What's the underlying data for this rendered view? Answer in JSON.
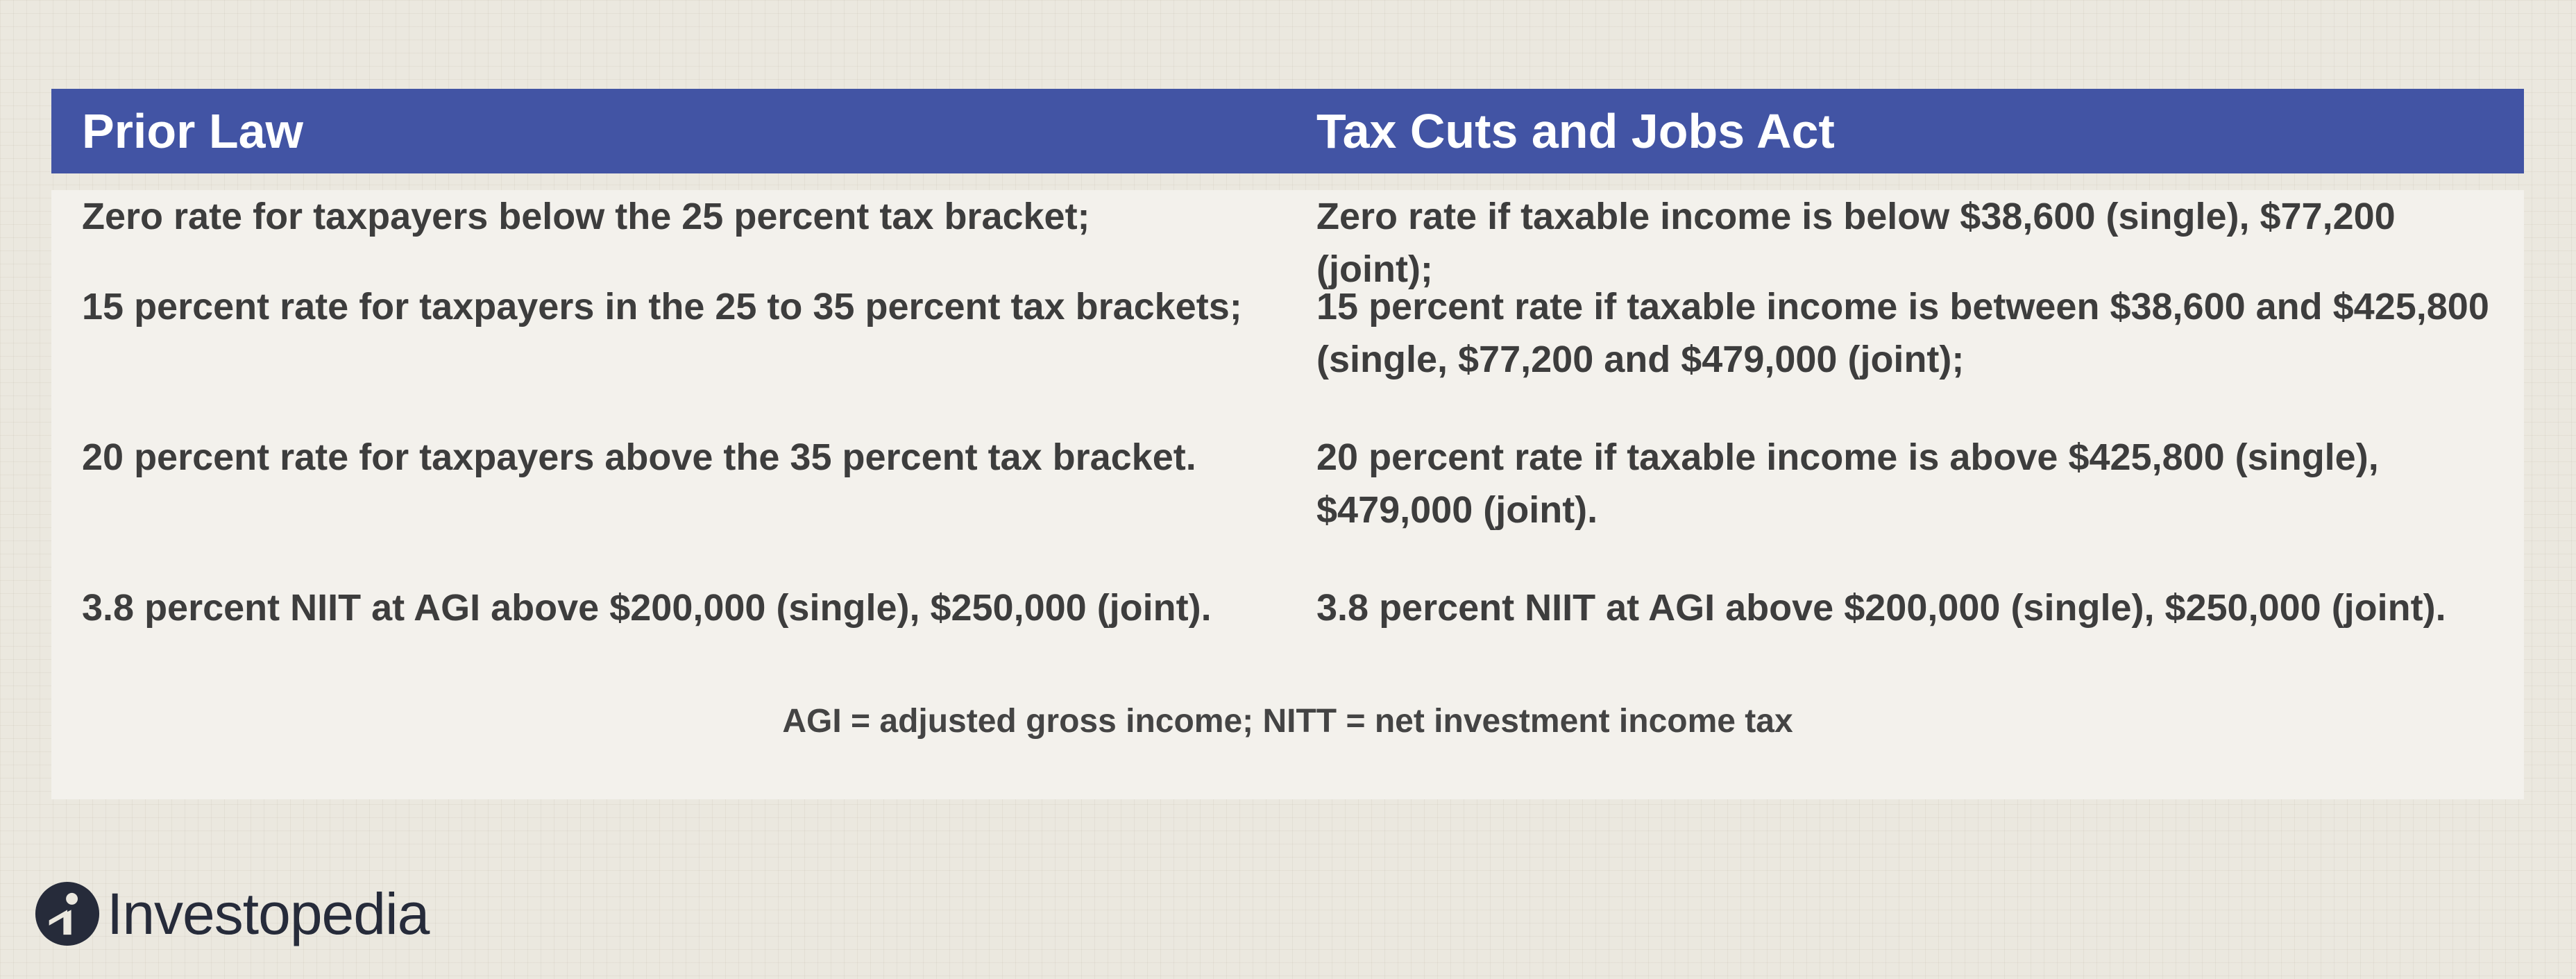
{
  "table": {
    "headers": {
      "left": "Prior Law",
      "right": "Tax Cuts and Jobs Act"
    },
    "rows": [
      {
        "left": "Zero rate for taxpayers below the 25 percent tax bracket;",
        "right": "Zero rate if taxable income is below $38,600 (single), $77,200 (joint);"
      },
      {
        "left": "15 percent rate for taxpayers in the 25 to 35 percent tax brackets;",
        "right": "15 percent rate if taxable income is between $38,600 and $425,800 (single, $77,200 and $479,000 (joint);"
      },
      {
        "left": "20 percent rate for taxpayers above the 35 percent tax bracket.",
        "right": "20 percent rate if taxable income is above $425,800 (single), $479,000 (joint)."
      },
      {
        "left": "3.8 percent NIIT at AGI above $200,000 (single), $250,000 (joint).",
        "right": "3.8 percent NIIT at AGI above $200,000 (single), $250,000 (joint)."
      }
    ],
    "footnote": "AGI = adjusted gross income; NITT = net investment income tax"
  },
  "brand": {
    "name": "Investopedia",
    "logo_icon": "investopedia-i-logo-icon"
  },
  "colors": {
    "header_background": "#4254a4",
    "header_text": "#ffffff",
    "panel_background": "#f3f1ec",
    "page_background": "#ebe8df",
    "body_text": "#3d3d3d",
    "brand_dark": "#262b3a"
  }
}
